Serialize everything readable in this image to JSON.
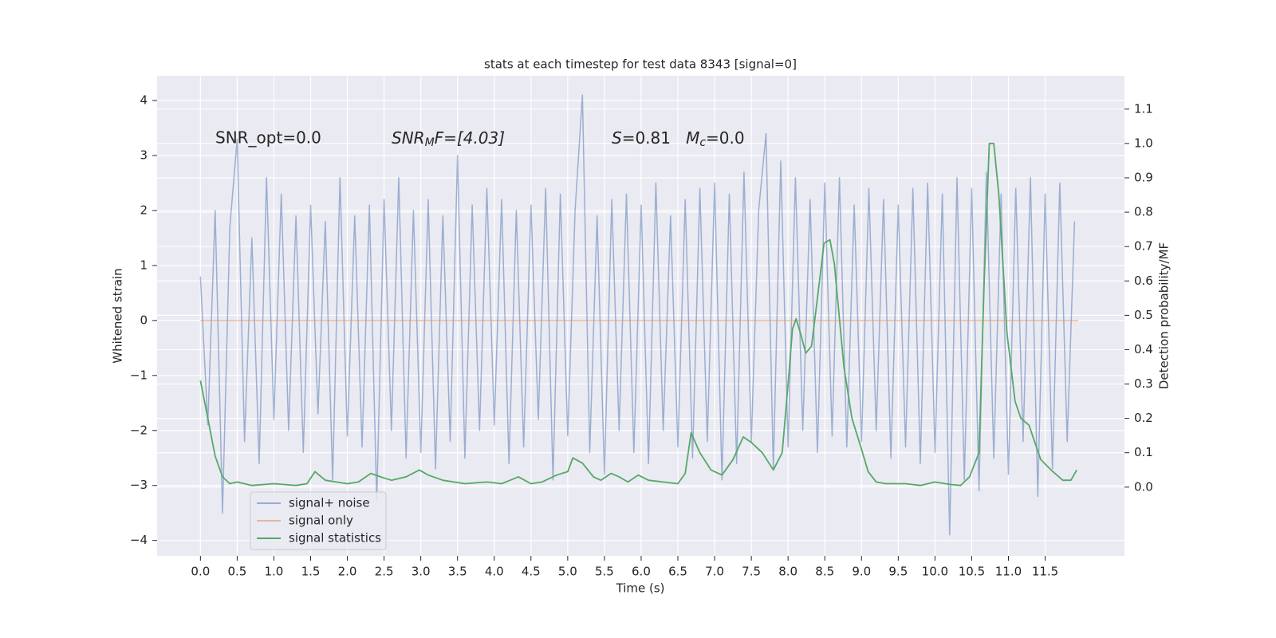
{
  "chart_data": {
    "type": "line",
    "title": "stats at each timestep for test data 8343 [signal=0]",
    "xlabel": "Time (s)",
    "ylabel": "Whitened strain",
    "y2label": "Detection probability/MF",
    "annotations": [
      "SNR_opt=0.0",
      [
        "SNR",
        "M",
        "F=[4.03]"
      ],
      [
        "S",
        "=0.81   ",
        "M",
        "c",
        "=0.0"
      ]
    ],
    "xlim": [
      -0.59,
      12.58
    ],
    "ylim": [
      -4.28,
      4.45
    ],
    "y2lim": [
      -0.2,
      1.197
    ],
    "xticks": [
      {
        "value": 0,
        "label": "0.0"
      },
      0.5,
      {
        "value": 1,
        "label": "1.0"
      },
      1.5,
      {
        "value": 2,
        "label": "2.0"
      },
      2.5,
      {
        "value": 3,
        "label": "3.0"
      },
      3.5,
      {
        "value": 4,
        "label": "4.0"
      },
      4.5,
      {
        "value": 5,
        "label": "5.0"
      },
      5.5,
      {
        "value": 6,
        "label": "6.0"
      },
      6.5,
      {
        "value": 7,
        "label": "7.0"
      },
      7.5,
      {
        "value": 8,
        "label": "8.0"
      },
      8.5,
      {
        "value": 9,
        "label": "9.0"
      },
      9.5,
      {
        "value": 10,
        "label": "10.0"
      },
      10.5,
      {
        "value": 11,
        "label": "11.0"
      },
      11.5
    ],
    "yticks": [
      {
        "value": -4,
        "label": "−4"
      },
      {
        "value": -3,
        "label": "−3"
      },
      {
        "value": -2,
        "label": "−2"
      },
      {
        "value": -1,
        "label": "−1"
      },
      0,
      1,
      2,
      3,
      4
    ],
    "y2ticks": [
      {
        "value": 0,
        "label": "0.0"
      },
      0.1,
      0.2,
      0.3,
      0.4,
      0.5,
      0.6,
      0.7,
      0.8,
      0.9,
      {
        "value": 1,
        "label": "1.0"
      },
      1.1
    ],
    "grid": true,
    "legend": "lower left",
    "series": [
      {
        "name": "signal+ noise",
        "color": "#4c72b0",
        "opacity": 0.5,
        "x": [
          0,
          0.1,
          0.2,
          0.3,
          0.4,
          0.5,
          0.6,
          0.7,
          0.8,
          0.9,
          1,
          1.1,
          1.2,
          1.3,
          1.4,
          1.5,
          1.6,
          1.7,
          1.8,
          1.9,
          2,
          2.1,
          2.2,
          2.3,
          2.4,
          2.5,
          2.6,
          2.7,
          2.8,
          2.9,
          3,
          3.1,
          3.2,
          3.3,
          3.4,
          3.5,
          3.6,
          3.7,
          3.8,
          3.9,
          4,
          4.1,
          4.2,
          4.3,
          4.4,
          4.5,
          4.6,
          4.7,
          4.8,
          4.9,
          5,
          5.1,
          5.2,
          5.3,
          5.4,
          5.5,
          5.6,
          5.7,
          5.8,
          5.9,
          6,
          6.1,
          6.2,
          6.3,
          6.4,
          6.5,
          6.6,
          6.7,
          6.8,
          6.9,
          7,
          7.1,
          7.2,
          7.3,
          7.4,
          7.5,
          7.6,
          7.7,
          7.8,
          7.9,
          8,
          8.1,
          8.2,
          8.3,
          8.4,
          8.5,
          8.6,
          8.7,
          8.8,
          8.9,
          9,
          9.1,
          9.2,
          9.3,
          9.4,
          9.5,
          9.6,
          9.7,
          9.8,
          9.9,
          10,
          10.1,
          10.2,
          10.3,
          10.4,
          10.5,
          10.6,
          10.7,
          10.8,
          10.9,
          11,
          11.1,
          11.2,
          11.3,
          11.4,
          11.5,
          11.6,
          11.7,
          11.8,
          11.9
        ],
        "values": [
          0.8,
          -1.9,
          2.0,
          -3.5,
          1.7,
          3.3,
          -2.2,
          1.5,
          -2.6,
          2.6,
          -1.8,
          2.3,
          -2.0,
          1.9,
          -2.4,
          2.1,
          -1.7,
          1.8,
          -2.9,
          2.6,
          -2.1,
          1.9,
          -2.3,
          2.1,
          -3.3,
          2.2,
          -2.0,
          2.6,
          -2.5,
          2.0,
          -2.4,
          2.2,
          -2.7,
          1.9,
          -2.2,
          3.0,
          -2.5,
          2.1,
          -2.0,
          2.4,
          -1.9,
          2.2,
          -2.6,
          2.0,
          -2.3,
          2.1,
          -1.8,
          2.4,
          -2.9,
          2.3,
          -2.1,
          2.0,
          4.1,
          -2.4,
          1.9,
          -2.8,
          2.2,
          -2.0,
          2.3,
          -2.4,
          2.1,
          -2.6,
          2.5,
          -2.0,
          1.9,
          -2.3,
          2.2,
          -2.5,
          2.4,
          -2.2,
          2.5,
          -2.9,
          2.3,
          -2.6,
          2.7,
          -2.2,
          2.0,
          3.4,
          -2.7,
          2.9,
          -2.3,
          2.6,
          -2.0,
          2.2,
          -2.4,
          2.5,
          -2.1,
          2.6,
          -2.3,
          2.1,
          -2.2,
          2.4,
          -2.0,
          2.2,
          -2.5,
          2.1,
          -2.3,
          2.4,
          -2.6,
          2.5,
          -2.4,
          2.3,
          -3.9,
          2.6,
          -2.9,
          2.4,
          -3.1,
          2.7,
          -2.5,
          2.3,
          -2.8,
          2.4,
          -2.2,
          2.6,
          -3.2,
          2.3,
          -2.7,
          2.5,
          -2.2,
          1.8
        ]
      },
      {
        "name": "signal only",
        "color": "#dd8452",
        "opacity": 0.5,
        "x": [
          0,
          11.95
        ],
        "values": [
          0,
          0
        ]
      },
      {
        "name": "signal statistics",
        "color": "#55a868",
        "opacity": 1,
        "axis": "y2",
        "x": [
          0,
          0.1,
          0.2,
          0.3,
          0.4,
          0.5,
          0.7,
          1.0,
          1.3,
          1.45,
          1.56,
          1.7,
          1.85,
          2.0,
          2.15,
          2.32,
          2.45,
          2.6,
          2.8,
          2.98,
          3.1,
          3.3,
          3.6,
          3.9,
          4.1,
          4.33,
          4.5,
          4.65,
          4.85,
          5.0,
          5.07,
          5.2,
          5.35,
          5.45,
          5.59,
          5.7,
          5.82,
          5.96,
          6.1,
          6.3,
          6.5,
          6.6,
          6.68,
          6.8,
          6.95,
          7.1,
          7.25,
          7.39,
          7.5,
          7.65,
          7.8,
          7.92,
          8.0,
          8.06,
          8.11,
          8.18,
          8.24,
          8.32,
          8.4,
          8.49,
          8.57,
          8.63,
          8.76,
          8.87,
          9.0,
          9.09,
          9.2,
          9.33,
          9.6,
          9.8,
          10.0,
          10.2,
          10.35,
          10.47,
          10.6,
          10.67,
          10.74,
          10.8,
          10.87,
          10.98,
          11.09,
          11.17,
          11.28,
          11.44,
          11.58,
          11.74,
          11.85,
          11.93
        ],
        "values": [
          0.31,
          0.2,
          0.09,
          0.03,
          0.01,
          0.015,
          0.005,
          0.01,
          0.005,
          0.01,
          0.045,
          0.02,
          0.015,
          0.01,
          0.015,
          0.04,
          0.03,
          0.02,
          0.03,
          0.05,
          0.035,
          0.02,
          0.01,
          0.015,
          0.01,
          0.03,
          0.01,
          0.015,
          0.035,
          0.045,
          0.085,
          0.07,
          0.03,
          0.02,
          0.04,
          0.03,
          0.015,
          0.035,
          0.02,
          0.015,
          0.01,
          0.04,
          0.158,
          0.1,
          0.05,
          0.035,
          0.08,
          0.146,
          0.13,
          0.1,
          0.05,
          0.1,
          0.3,
          0.46,
          0.49,
          0.44,
          0.39,
          0.41,
          0.55,
          0.71,
          0.72,
          0.65,
          0.35,
          0.2,
          0.11,
          0.045,
          0.015,
          0.01,
          0.01,
          0.005,
          0.015,
          0.008,
          0.005,
          0.03,
          0.1,
          0.6,
          1.0,
          1.0,
          0.85,
          0.45,
          0.25,
          0.2,
          0.18,
          0.08,
          0.05,
          0.02,
          0.02,
          0.05
        ]
      }
    ]
  }
}
